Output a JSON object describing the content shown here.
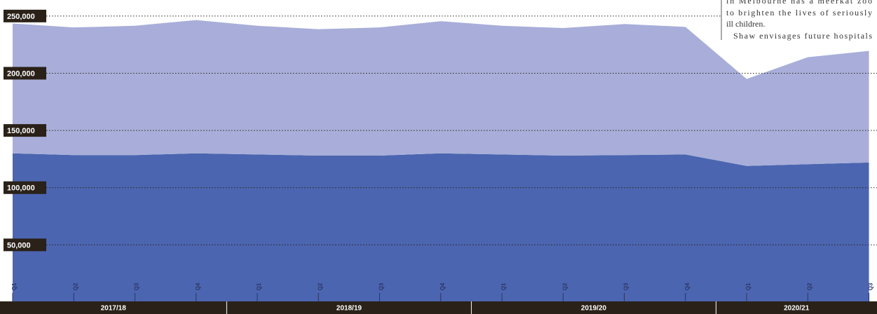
{
  "chart_data": {
    "type": "stacked_area",
    "categories": [
      "Q1",
      "Q2",
      "Q3",
      "Q4",
      "Q1",
      "Q2",
      "Q3",
      "Q4",
      "Q1",
      "Q2",
      "Q3",
      "Q4",
      "Q1",
      "Q2",
      "Q3"
    ],
    "groups": [
      {
        "label": "2017/18",
        "size": 4
      },
      {
        "label": "2018/19",
        "size": 4
      },
      {
        "label": "2019/20",
        "size": 4
      },
      {
        "label": "2020/21",
        "size": 3
      }
    ],
    "series": [
      {
        "color": "#4b65b0",
        "values": [
          130000,
          128500,
          128500,
          130000,
          129000,
          128000,
          128000,
          130000,
          129000,
          128000,
          128500,
          129000,
          119000,
          120500,
          122000
        ]
      },
      {
        "color": "#a8aed9",
        "values": [
          113500,
          111500,
          113000,
          116500,
          112500,
          110500,
          112000,
          115500,
          112500,
          111500,
          114500,
          111500,
          76000,
          93500,
          97500
        ]
      }
    ],
    "ylim": [
      0,
      264000
    ],
    "yticks": [
      {
        "value": 50000,
        "label": "50,000"
      },
      {
        "value": 100000,
        "label": "100,000"
      },
      {
        "value": 150000,
        "label": "150,000"
      },
      {
        "value": 200000,
        "label": "200,000"
      },
      {
        "value": 250000,
        "label": "250,000"
      }
    ],
    "grid": true
  },
  "annotation": {
    "lines": [
      "in Melbourne has a meerkat zoo",
      "to brighten the lives of seriously",
      "ill children.",
      "Shaw envisages future hospitals"
    ]
  }
}
